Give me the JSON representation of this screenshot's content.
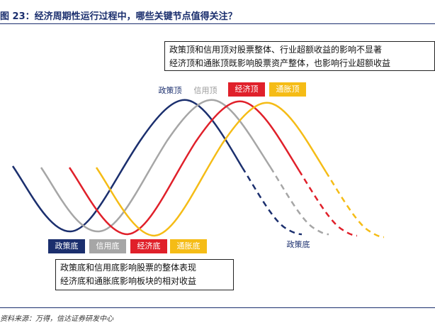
{
  "title": "图 23：经济周期性运行过程中，哪些关键节点值得关注？",
  "note_top": {
    "line1": "政策顶和信用顶对股票整体、行业超额收益的影响不显著",
    "line2": "经济顶和通胀顶既影响股票资产整体，也影响行业超额收益"
  },
  "note_bottom": {
    "line1": "政策底和信用底影响股票的整体表现",
    "line2": "经济底和通胀底影响板块的相对收益"
  },
  "top_labels": {
    "policy": "政策顶",
    "credit": "信用顶",
    "economy": "经济顶",
    "inflation": "通胀顶"
  },
  "bottom_labels": {
    "policy": "政策底",
    "credit": "信用底",
    "economy": "经济底",
    "inflation": "通胀底"
  },
  "right_label": "政策底",
  "source": "资料来源：万得，信达证券研发中心",
  "colors": {
    "policy": "#1b2f6e",
    "credit": "#a6a6a6",
    "economy": "#e0202a",
    "inflation": "#f5bc16"
  }
}
